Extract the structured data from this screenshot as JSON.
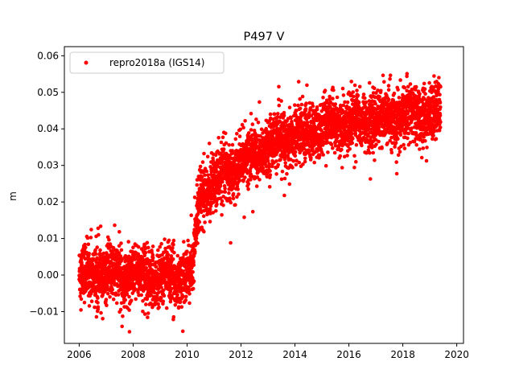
{
  "chart_data": {
    "type": "scatter",
    "title": "P497 V",
    "xlabel": "",
    "ylabel": "m",
    "xlim": [
      2005.45,
      2020.25
    ],
    "ylim": [
      -0.0187,
      0.0625
    ],
    "x_ticks": [
      2006,
      2008,
      2010,
      2012,
      2014,
      2016,
      2018,
      2020
    ],
    "x_tick_labels": [
      "2006",
      "2008",
      "2010",
      "2012",
      "2014",
      "2016",
      "2018",
      "2020"
    ],
    "y_ticks": [
      -0.01,
      0.0,
      0.01,
      0.02,
      0.03,
      0.04,
      0.05,
      0.06
    ],
    "y_tick_labels": [
      "−0.01",
      "0.00",
      "0.01",
      "0.02",
      "0.03",
      "0.04",
      "0.05",
      "0.06"
    ],
    "grid": false,
    "legend_position": "top-left",
    "series": [
      {
        "name": "repro2018a (IGS14)",
        "color": "#ff0000",
        "marker": "circle",
        "trend": [
          {
            "x": 2006.0,
            "y": 0.0
          },
          {
            "x": 2008.0,
            "y": 0.0
          },
          {
            "x": 2010.2,
            "y": 0.0
          },
          {
            "x": 2010.45,
            "y": 0.022
          },
          {
            "x": 2011.0,
            "y": 0.025
          },
          {
            "x": 2012.0,
            "y": 0.031
          },
          {
            "x": 2013.0,
            "y": 0.035
          },
          {
            "x": 2014.0,
            "y": 0.038
          },
          {
            "x": 2015.0,
            "y": 0.04
          },
          {
            "x": 2016.0,
            "y": 0.042
          },
          {
            "x": 2017.0,
            "y": 0.0425
          },
          {
            "x": 2018.0,
            "y": 0.0435
          },
          {
            "x": 2019.4,
            "y": 0.0445
          }
        ],
        "scatter_sigma": 0.0045,
        "x_start": 2006.0,
        "x_end": 2019.4,
        "step_at": 2010.3,
        "y_min": -0.0155,
        "y_max": 0.059
      }
    ]
  }
}
